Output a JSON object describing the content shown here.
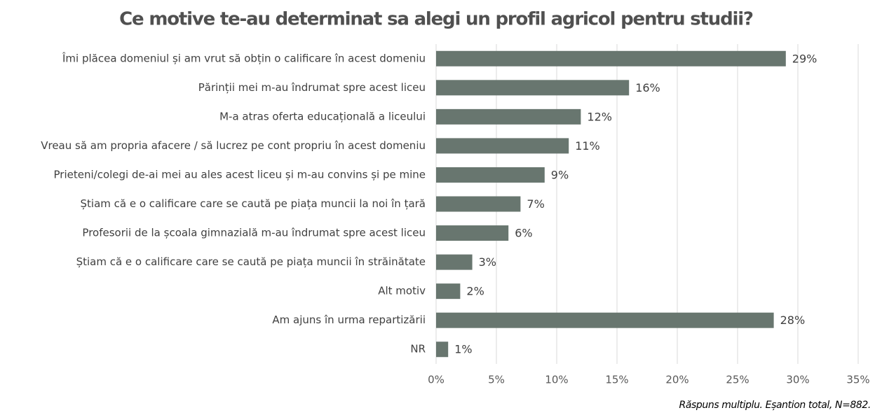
{
  "chart_data": {
    "type": "bar",
    "orientation": "horizontal",
    "title": "Ce motive te-au determinat sa alegi un profil agricol pentru studii?",
    "categories": [
      "Îmi plăcea domeniul și am vrut să obțin o calificare în acest domeniu",
      "Părinții mei m-au îndrumat spre acest liceu",
      "M-a atras oferta educațională a liceului",
      "Vreau să am propria afacere / să lucrez pe cont propriu în acest domeniu",
      "Prieteni/colegi de-ai mei au ales acest liceu și m-au convins și pe mine",
      "Știam că e o calificare care se caută pe piața muncii la noi în țară",
      "Profesorii de la școala gimnazială m-au îndrumat spre acest liceu",
      "Știam că e o calificare care se caută pe piața muncii în străinătate",
      "Alt motiv",
      "Am ajuns în urma repartizării",
      "NR"
    ],
    "values": [
      29,
      16,
      12,
      11,
      9,
      7,
      6,
      3,
      2,
      28,
      1
    ],
    "value_labels": [
      "29%",
      "16%",
      "12%",
      "11%",
      "9%",
      "7%",
      "6%",
      "3%",
      "2%",
      "28%",
      "1%"
    ],
    "color": "#68766f",
    "xlim": [
      0,
      35
    ],
    "xticks": [
      {
        "value": 0,
        "label": "0%"
      },
      {
        "value": 5,
        "label": "5%"
      },
      {
        "value": 10,
        "label": "10%"
      },
      {
        "value": 15,
        "label": "15%"
      },
      {
        "value": 20,
        "label": "20%"
      },
      {
        "value": 25,
        "label": "25%"
      },
      {
        "value": 30,
        "label": "30%"
      },
      {
        "value": 35,
        "label": "35%"
      }
    ],
    "grid": true,
    "note": "Răspuns multiplu. Eșantion total, N=882."
  }
}
